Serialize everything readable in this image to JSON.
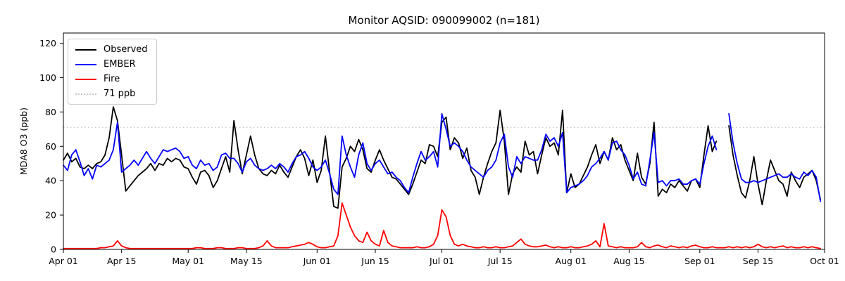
{
  "chart_data": {
    "type": "line",
    "title": "Monitor AQSID: 090099002 (n=181)",
    "n_points": 181,
    "ylabel": "MDA8 O3 (ppb)",
    "ylim": [
      0,
      126
    ],
    "yticks": [
      0,
      20,
      40,
      60,
      80,
      100,
      120
    ],
    "x_unit": "days since Apr 01",
    "x_range_days": 183,
    "grid": false,
    "legend_position": "upper left",
    "xticks": [
      {
        "label": "Apr 01",
        "day": 0
      },
      {
        "label": "Apr 15",
        "day": 14
      },
      {
        "label": "May 01",
        "day": 30
      },
      {
        "label": "May 15",
        "day": 44
      },
      {
        "label": "Jun 01",
        "day": 61
      },
      {
        "label": "Jun 15",
        "day": 75
      },
      {
        "label": "Jul 01",
        "day": 91
      },
      {
        "label": "Jul 15",
        "day": 105
      },
      {
        "label": "Aug 01",
        "day": 122
      },
      {
        "label": "Aug 15",
        "day": 136
      },
      {
        "label": "Sep 01",
        "day": 153
      },
      {
        "label": "Sep 15",
        "day": 167
      },
      {
        "label": "Oct 01",
        "day": 183
      }
    ],
    "reference_line": {
      "label": "71 ppb",
      "value": 71,
      "color": "#c8c8c8",
      "style": "dotted"
    },
    "series": [
      {
        "name": "Observed",
        "color": "#000000",
        "values": [
          52,
          56,
          51,
          53,
          48,
          47,
          49,
          47,
          50,
          51,
          55,
          65,
          83,
          75,
          55,
          34,
          37,
          40,
          43,
          45,
          47,
          50,
          46,
          50,
          49,
          53,
          51,
          53,
          52,
          48,
          47,
          42,
          38,
          45,
          46,
          43,
          36,
          40,
          47,
          54,
          45,
          75,
          58,
          44,
          55,
          66,
          55,
          47,
          44,
          43,
          46,
          44,
          49,
          45,
          42,
          48,
          54,
          58,
          53,
          43,
          52,
          39,
          46,
          66,
          45,
          25,
          24,
          48,
          53,
          60,
          57,
          64,
          58,
          47,
          45,
          52,
          58,
          52,
          47,
          42,
          41,
          38,
          35,
          32,
          38,
          45,
          52,
          50,
          61,
          60,
          54,
          74,
          77,
          58,
          65,
          62,
          53,
          59,
          46,
          42,
          32,
          42,
          50,
          57,
          62,
          81,
          63,
          32,
          44,
          48,
          45,
          63,
          55,
          57,
          44,
          55,
          65,
          60,
          62,
          55,
          81,
          33,
          44,
          36,
          38,
          43,
          48,
          55,
          61,
          50,
          57,
          52,
          65,
          58,
          61,
          52,
          46,
          40,
          56,
          42,
          38,
          50,
          74,
          31,
          35,
          33,
          38,
          36,
          40,
          37,
          34,
          40,
          41,
          36,
          55,
          72,
          57,
          63,
          null,
          null,
          72,
          55,
          43,
          33,
          30,
          40,
          54,
          38,
          26,
          40,
          52,
          46,
          40,
          38,
          31,
          45,
          40,
          36,
          42,
          44,
          46,
          40,
          29
        ]
      },
      {
        "name": "EMBER",
        "color": "#0000ff",
        "values": [
          49,
          46,
          55,
          58,
          51,
          43,
          47,
          41,
          49,
          48,
          50,
          52,
          58,
          74,
          45,
          47,
          49,
          52,
          49,
          53,
          57,
          53,
          50,
          54,
          58,
          57,
          58,
          59,
          57,
          53,
          54,
          49,
          47,
          52,
          49,
          50,
          46,
          48,
          55,
          56,
          53,
          53,
          50,
          45,
          51,
          53,
          49,
          47,
          46,
          47,
          49,
          47,
          50,
          48,
          45,
          50,
          54,
          55,
          57,
          53,
          48,
          46,
          48,
          52,
          44,
          35,
          32,
          66,
          55,
          48,
          42,
          55,
          62,
          50,
          46,
          50,
          52,
          48,
          44,
          45,
          42,
          40,
          36,
          33,
          42,
          50,
          57,
          52,
          54,
          57,
          48,
          79,
          70,
          60,
          62,
          60,
          57,
          52,
          48,
          46,
          44,
          42,
          46,
          48,
          52,
          62,
          67,
          48,
          42,
          54,
          50,
          54,
          53,
          52,
          52,
          58,
          67,
          63,
          65,
          60,
          68,
          33,
          36,
          37,
          38,
          40,
          43,
          48,
          50,
          53,
          57,
          52,
          62,
          63,
          58,
          55,
          49,
          41,
          45,
          38,
          37,
          52,
          68,
          39,
          40,
          37,
          40,
          40,
          41,
          38,
          38,
          40,
          41,
          38,
          50,
          60,
          66,
          58,
          null,
          null,
          79,
          62,
          50,
          41,
          39,
          39,
          40,
          39,
          40,
          41,
          42,
          43,
          44,
          42,
          42,
          44,
          42,
          41,
          45,
          43,
          46,
          42,
          28
        ]
      },
      {
        "name": "Fire",
        "color": "#ff0000",
        "values": [
          0.5,
          0.5,
          0.5,
          0.5,
          0.5,
          0.5,
          0.5,
          0.5,
          0.5,
          1,
          1,
          1.5,
          2,
          5,
          2,
          1,
          0.5,
          0.5,
          0.5,
          0.5,
          0.5,
          0.5,
          0.5,
          0.5,
          0.5,
          0.5,
          0.5,
          0.5,
          0.5,
          0.5,
          0.5,
          0.5,
          1,
          1,
          0.5,
          0.5,
          0.5,
          1,
          1,
          0.5,
          0.5,
          0.5,
          1,
          1,
          0.5,
          0.5,
          0.5,
          1,
          2,
          5,
          2,
          1,
          1,
          1,
          1,
          1.5,
          2,
          2.5,
          3,
          4,
          3,
          1.5,
          1,
          1,
          1.5,
          2,
          8,
          27,
          20,
          13,
          8,
          5,
          4,
          10,
          5,
          3,
          2,
          11,
          4,
          2,
          1.5,
          1,
          1,
          1,
          1,
          1.5,
          1,
          1,
          1.5,
          3,
          8,
          23,
          19,
          8,
          3,
          2,
          3,
          2,
          1.5,
          1,
          1,
          1.5,
          1,
          1,
          1.5,
          1,
          1,
          1.5,
          2,
          4,
          6,
          3,
          2,
          1.5,
          1.5,
          2,
          2.5,
          1.5,
          1,
          1.5,
          1,
          1,
          1.5,
          1,
          1,
          1.5,
          2,
          3,
          5,
          1.5,
          15,
          2,
          1.5,
          1,
          1.5,
          1,
          1,
          1,
          1.5,
          4,
          1.5,
          1,
          2,
          2.5,
          1.5,
          1,
          2,
          1.5,
          1,
          1.5,
          1,
          2,
          2.5,
          1.5,
          1,
          1,
          1.5,
          1,
          1,
          1,
          1.5,
          1,
          1.5,
          1,
          1.5,
          1,
          1.5,
          3,
          1.5,
          1,
          1.5,
          1,
          1.5,
          2,
          1,
          1.5,
          1,
          1,
          1.5,
          1,
          1.5,
          1,
          0.5
        ]
      }
    ]
  }
}
